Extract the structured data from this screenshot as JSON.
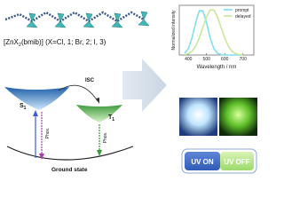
{
  "formula": {
    "prefix": "[ZnX",
    "subscript": "2",
    "suffix": "(bmib)] (X=Cl, 1; Br, 2; I, 3)"
  },
  "jablonski": {
    "singlet": {
      "letter": "S",
      "subscript": "1"
    },
    "triplet": {
      "letter": "T",
      "subscript": "1"
    },
    "isc": "ISC",
    "singlet_emission": "Phos.",
    "triplet_emission": "Phos.",
    "ground": "Ground state"
  },
  "spectrum": {
    "type": "line",
    "xlabel": "Wavelength / nm",
    "ylabel": "Normalized intensity",
    "x": [
      380,
      400,
      420,
      440,
      460,
      480,
      500,
      520,
      540,
      560,
      580,
      600,
      620,
      640,
      660,
      680,
      700
    ],
    "series": [
      {
        "name": "prompt",
        "color": "#7fe0ef",
        "values": [
          0.04,
          0.14,
          0.37,
          0.7,
          0.96,
          0.96,
          0.7,
          0.37,
          0.14,
          0.04,
          0.01,
          0,
          0,
          0,
          0,
          0,
          0
        ]
      },
      {
        "name": "delayed",
        "color": "#c8e89a",
        "values": [
          0.01,
          0.03,
          0.08,
          0.19,
          0.37,
          0.6,
          0.83,
          0.98,
          0.98,
          0.83,
          0.6,
          0.37,
          0.19,
          0.08,
          0.03,
          0.01,
          0
        ]
      }
    ],
    "xlim": [
      350,
      760
    ],
    "ylim": [
      0,
      1.08
    ],
    "xticks": [
      400,
      500,
      600,
      700
    ]
  },
  "buttons": {
    "on": "UV ON",
    "off": "UV OFF"
  }
}
